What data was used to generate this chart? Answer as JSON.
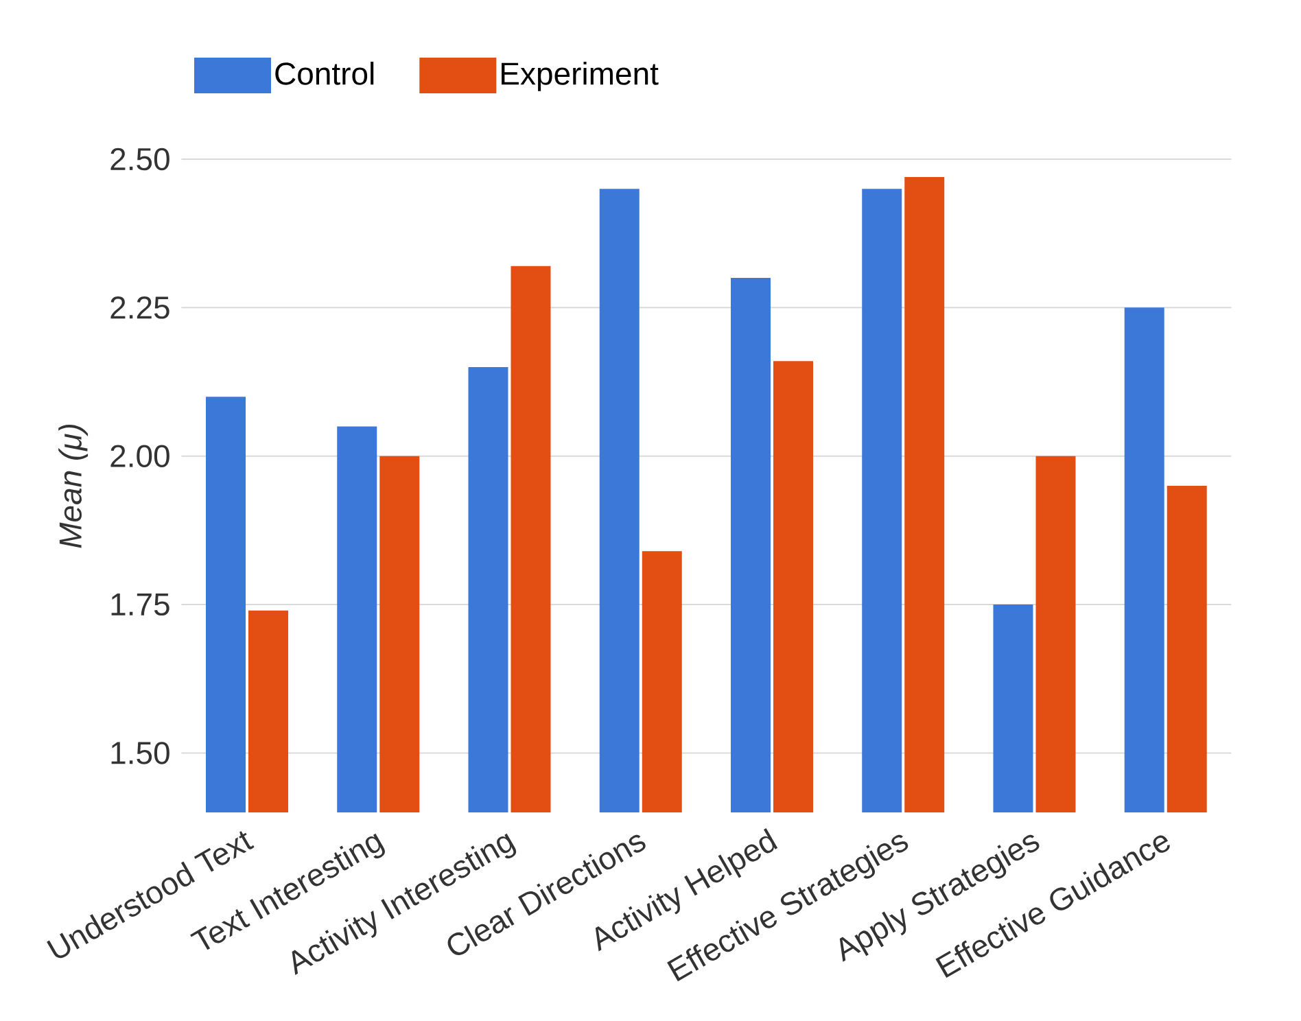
{
  "chart_data": {
    "type": "bar",
    "ylabel": "Mean (μ)",
    "categories": [
      "Understood Text",
      "Text Interesting",
      "Activity Interesting",
      "Clear Directions",
      "Activity Helped",
      "Effective Strategies",
      "Apply Strategies",
      "Effective Guidance"
    ],
    "series": [
      {
        "name": "Control",
        "color": "#3c78d8",
        "values": [
          2.1,
          2.05,
          2.15,
          2.45,
          2.3,
          2.45,
          1.75,
          2.25
        ]
      },
      {
        "name": "Experiment",
        "color": "#e34f12",
        "values": [
          1.74,
          2.0,
          2.32,
          1.84,
          2.16,
          2.47,
          2.0,
          1.95
        ]
      }
    ],
    "ylim": [
      1.4,
      2.5
    ],
    "yticks": [
      {
        "value": 1.5,
        "label": "1.50"
      },
      {
        "value": 1.75,
        "label": "1.75"
      },
      {
        "value": 2.0,
        "label": "2.00"
      },
      {
        "value": 2.25,
        "label": "2.25"
      },
      {
        "value": 2.5,
        "label": "2.50"
      }
    ],
    "grid": "y",
    "legend": "top left"
  }
}
